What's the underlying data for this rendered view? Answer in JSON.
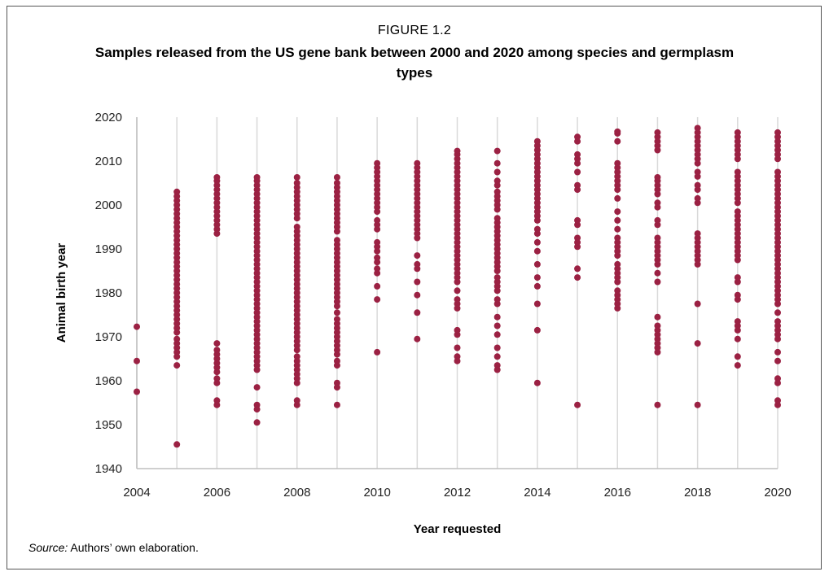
{
  "figure": {
    "label": "FIGURE 1.2",
    "title": "Samples released from the US gene bank between 2000 and 2020 among species and germplasm types",
    "source_prefix": "Source:",
    "source_text": " Authors’ own elaboration."
  },
  "colors": {
    "marker": "#9b2143",
    "grid": "#d9d9d9",
    "axis": "#bfbfbf"
  },
  "chart_data": {
    "type": "scatter",
    "xlabel": "Year requested",
    "ylabel": "Animal birth year",
    "xlim": [
      2004,
      2020
    ],
    "ylim": [
      1940,
      2020
    ],
    "x_ticks": [
      2004,
      2006,
      2008,
      2010,
      2012,
      2014,
      2016,
      2018,
      2020
    ],
    "y_ticks": [
      1940,
      1950,
      1960,
      1970,
      1980,
      1990,
      2000,
      2010,
      2020
    ],
    "grid": "vertical",
    "series": [
      {
        "points": [
          {
            "x": 2004,
            "y": [
              1957.5,
              1964.5,
              1972.3
            ]
          },
          {
            "x": 2005,
            "y": [
              1945.5,
              1963.5,
              1965.5,
              1966.5,
              1967.5,
              1968.5,
              1969.5,
              1971,
              1972,
              1973,
              1974,
              1975,
              1976,
              1977,
              1978,
              1979,
              1980,
              1981,
              1982,
              1983,
              1984,
              1985,
              1986,
              1987,
              1988,
              1989,
              1990,
              1991,
              1992,
              1993,
              1994,
              1995,
              1996,
              1997,
              1998,
              1999,
              2000,
              2001,
              2002,
              2003
            ]
          },
          {
            "x": 2006,
            "y": [
              1954.5,
              1955.5,
              1959.5,
              1960.5,
              1962,
              1963,
              1964,
              1965,
              1966,
              1967,
              1968.5,
              1993.5,
              1994.5,
              1995.5,
              1996.5,
              1997.5,
              1998.5,
              1999.5,
              2000.5,
              2001.5,
              2002.5,
              2003.5,
              2004.5,
              2005.5,
              2006.3
            ]
          },
          {
            "x": 2007,
            "y": [
              1950.5,
              1953.5,
              1954.5,
              1958.5,
              1962.5,
              1963.5,
              1964.5,
              1965.5,
              1966.5,
              1967.5,
              1968.5,
              1969.5,
              1970.5,
              1971.5,
              1972.5,
              1973.5,
              1974.5,
              1975.5,
              1976.5,
              1977.5,
              1978.5,
              1979.5,
              1980.5,
              1981.5,
              1982.5,
              1983.5,
              1984.5,
              1985.5,
              1986.5,
              1987.5,
              1988.5,
              1989.5,
              1990.5,
              1991.5,
              1992.5,
              1993.5,
              1994.5,
              1995.5,
              1996.5,
              1997.5,
              1998.5,
              1999.5,
              2000.5,
              2001.5,
              2002.5,
              2003.5,
              2004.5,
              2005.5,
              2006.3
            ]
          },
          {
            "x": 2008,
            "y": [
              1954.5,
              1955.5,
              1959.5,
              1960.5,
              1961.5,
              1962.5,
              1963.5,
              1964.5,
              1965.5,
              1967,
              1968,
              1969,
              1970,
              1971,
              1972,
              1973,
              1974,
              1975,
              1976,
              1977,
              1978,
              1979,
              1980,
              1981,
              1982,
              1983,
              1984,
              1985,
              1986,
              1987,
              1988,
              1989,
              1990,
              1991,
              1992,
              1993,
              1994,
              1995,
              1997,
              1998,
              1999,
              2000,
              2001,
              2002,
              2003,
              2004,
              2005,
              2006.3
            ]
          },
          {
            "x": 2009,
            "y": [
              1954.5,
              1958.5,
              1959.5,
              1963.5,
              1964.5,
              1966,
              1967,
              1968,
              1969,
              1970,
              1971,
              1972,
              1973,
              1974,
              1975.5,
              1977,
              1978,
              1979,
              1980,
              1981,
              1982,
              1983,
              1984,
              1985,
              1986,
              1987,
              1988,
              1989,
              1990,
              1991,
              1992,
              1994,
              1995,
              1996,
              1997,
              1998,
              1999,
              2000,
              2001,
              2002,
              2003,
              2004,
              2005,
              2006.3
            ]
          },
          {
            "x": 2010,
            "y": [
              1966.5,
              1978.5,
              1981.5,
              1984.5,
              1985.5,
              1987,
              1988,
              1989.5,
              1990.5,
              1991.5,
              1994.5,
              1995.5,
              1996.5,
              1998.5,
              1999.5,
              2000.5,
              2001.5,
              2002.5,
              2003.5,
              2004.5,
              2005.5,
              2006.5,
              2007.5,
              2008.5,
              2009.5
            ]
          },
          {
            "x": 2011,
            "y": [
              1969.5,
              1975.5,
              1979.5,
              1982.5,
              1985.5,
              1986.5,
              1988.5,
              1992.5,
              1993.5,
              1994.5,
              1995.5,
              1996.5,
              1997.5,
              1998.5,
              1999.5,
              2000.5,
              2001.5,
              2002.5,
              2003.5,
              2004.5,
              2005.5,
              2006.5,
              2007.5,
              2008.5,
              2009.5
            ]
          },
          {
            "x": 2012,
            "y": [
              1964.5,
              1965.5,
              1967.5,
              1970.5,
              1971.5,
              1976.5,
              1977.5,
              1978.5,
              1980.5,
              1982.5,
              1983.5,
              1984.5,
              1985.5,
              1986.5,
              1987.5,
              1988.5,
              1989.5,
              1990.5,
              1991.5,
              1992.5,
              1993.5,
              1994.5,
              1995.5,
              1996.5,
              1997.5,
              1998.5,
              1999.5,
              2000.5,
              2001.5,
              2002.5,
              2003.5,
              2004.5,
              2005.5,
              2006.5,
              2007.5,
              2008.5,
              2009.5,
              2010.5,
              2011.5,
              2012.3
            ]
          },
          {
            "x": 2013,
            "y": [
              1962.5,
              1963.5,
              1965.5,
              1967.5,
              1970.5,
              1972.5,
              1974.5,
              1977.5,
              1978.5,
              1980.5,
              1981.5,
              1982.5,
              1983.5,
              1985,
              1986,
              1987,
              1988,
              1989,
              1990,
              1991,
              1992,
              1993,
              1994,
              1995,
              1996,
              1997,
              1999,
              2000,
              2001,
              2002,
              2003,
              2004.5,
              2005.5,
              2007.5,
              2009.5,
              2012.3
            ]
          },
          {
            "x": 2014,
            "y": [
              1959.5,
              1971.5,
              1977.5,
              1981.5,
              1983.5,
              1986.5,
              1989.5,
              1991.5,
              1993.5,
              1994.5,
              1996.5,
              1997.5,
              1998.5,
              1999.5,
              2000.5,
              2001.5,
              2002.5,
              2003.5,
              2004.5,
              2005.5,
              2006.5,
              2007.5,
              2008.5,
              2009.5,
              2010.5,
              2011.5,
              2012.5,
              2013.5,
              2014.5
            ]
          },
          {
            "x": 2015,
            "y": [
              1954.5,
              1983.5,
              1985.5,
              1990.5,
              1991.5,
              1992.5,
              1995.5,
              1996.5,
              2003.5,
              2004.5,
              2007.5,
              2009.5,
              2010.5,
              2011.5,
              2014.5,
              2015.5
            ]
          },
          {
            "x": 2016,
            "y": [
              1976.5,
              1977.5,
              1978.5,
              1979.5,
              1980.5,
              1982.5,
              1983.5,
              1984.5,
              1985.5,
              1986.5,
              1988.5,
              1989.5,
              1990.5,
              1991.5,
              1992.5,
              1994.5,
              1996.5,
              1998.5,
              2001.5,
              2003.5,
              2004.5,
              2005.5,
              2006.5,
              2007.5,
              2008.5,
              2009.5,
              2014.5,
              2016.3,
              2016.7
            ]
          },
          {
            "x": 2017,
            "y": [
              1954.5,
              1966.5,
              1967.5,
              1968.5,
              1969.5,
              1970.5,
              1971.5,
              1972.5,
              1974.5,
              1982.5,
              1984.5,
              1986.5,
              1987.5,
              1988.5,
              1989.5,
              1990.5,
              1991.5,
              1992.5,
              1995.5,
              1996.5,
              1999.5,
              2000.5,
              2002.5,
              2003.5,
              2004.5,
              2005.5,
              2006.3,
              2012.5,
              2013.5,
              2014.5,
              2015.5,
              2016.5
            ]
          },
          {
            "x": 2018,
            "y": [
              1954.5,
              1968.5,
              1977.5,
              1986.5,
              1987.5,
              1988.5,
              1989.5,
              1990.5,
              1991.5,
              1992.5,
              1993.5,
              2000.5,
              2001.5,
              2003.5,
              2004.5,
              2006.5,
              2007.5,
              2009.5,
              2010.5,
              2011.5,
              2012.5,
              2013.5,
              2014.5,
              2015.5,
              2016.5,
              2017.5
            ]
          },
          {
            "x": 2019,
            "y": [
              1963.5,
              1965.5,
              1969.5,
              1971.5,
              1972.5,
              1973.5,
              1978.5,
              1979.5,
              1982.5,
              1983.5,
              1987.5,
              1988.5,
              1989.5,
              1990.5,
              1991.5,
              1992.5,
              1993.5,
              1994.5,
              1995.5,
              1996.5,
              1997.5,
              1998.5,
              2000.5,
              2001.5,
              2002.5,
              2003.5,
              2004.5,
              2005.5,
              2006.5,
              2007.5,
              2010.5,
              2011.5,
              2012.5,
              2013.5,
              2014.5,
              2015.5,
              2016.5
            ]
          },
          {
            "x": 2020,
            "y": [
              1954.5,
              1955.5,
              1959.5,
              1960.5,
              1964.5,
              1966.5,
              1969.5,
              1970.5,
              1971.5,
              1972.5,
              1973.5,
              1975.5,
              1977.5,
              1978.5,
              1979.5,
              1980.5,
              1981.5,
              1982.5,
              1983.5,
              1984.5,
              1985.5,
              1986.5,
              1987.5,
              1988.5,
              1989.5,
              1990.5,
              1991.5,
              1992.5,
              1993.5,
              1994.5,
              1995.5,
              1996.5,
              1997.5,
              1998.5,
              1999.5,
              2000.5,
              2001.5,
              2002.5,
              2003.5,
              2004.5,
              2005.5,
              2006.5,
              2007.5,
              2010.5,
              2011.5,
              2012.5,
              2013.5,
              2014.5,
              2015.5,
              2016.5
            ]
          }
        ]
      }
    ]
  }
}
